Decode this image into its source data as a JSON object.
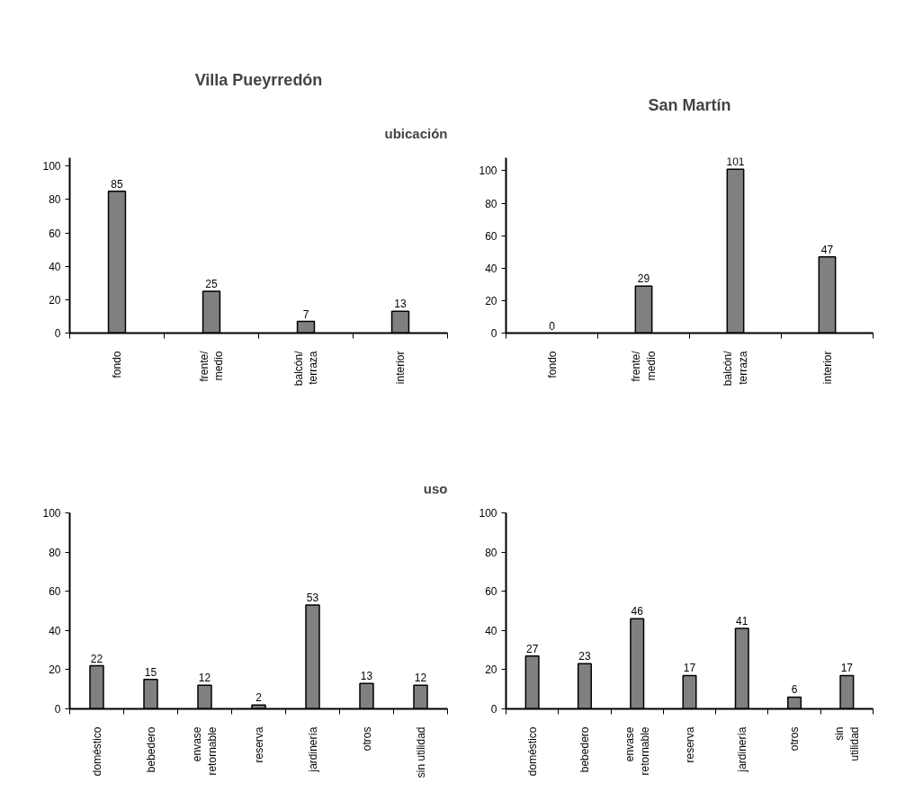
{
  "chart_data": [
    {
      "type": "bar",
      "title": "Villa Pueyrredón",
      "subtitle": "ubicación",
      "categories": [
        "fondo",
        "frente/\nmedio",
        "balcón/\nterraza",
        "interior"
      ],
      "values": [
        85,
        25,
        7,
        13
      ],
      "color": "#808080",
      "ylim": [
        0,
        105
      ],
      "yticks": [
        0,
        20,
        40,
        60,
        80,
        100
      ],
      "data_labels": true
    },
    {
      "type": "bar",
      "title": "San Martín",
      "categories": [
        "fondo",
        "frente/\nmedio",
        "balcón/\nterraza",
        "interior"
      ],
      "values": [
        0,
        29,
        101,
        47
      ],
      "color": "#808080",
      "ylim": [
        0,
        108
      ],
      "yticks": [
        0,
        20,
        40,
        60,
        80,
        100
      ],
      "data_labels": true
    },
    {
      "type": "bar",
      "subtitle": "uso",
      "categories": [
        "doméstico",
        "bebedero",
        "envase\nretornable",
        "reserva",
        "jardinería",
        "otros",
        "sin utilidad"
      ],
      "values": [
        22,
        15,
        12,
        2,
        53,
        13,
        12
      ],
      "color": "#808080",
      "ylim": [
        0,
        100
      ],
      "yticks": [
        0,
        20,
        40,
        60,
        80,
        100
      ],
      "data_labels": true
    },
    {
      "type": "bar",
      "categories": [
        "doméstico",
        "bebedero",
        "envase\nretornable",
        "reserva",
        "jardinería",
        "otros",
        "sin\nutilidad"
      ],
      "values": [
        27,
        23,
        46,
        17,
        41,
        6,
        17
      ],
      "color": "#808080",
      "ylim": [
        0,
        100
      ],
      "yticks": [
        0,
        20,
        40,
        60,
        80,
        100
      ],
      "data_labels": true
    }
  ]
}
